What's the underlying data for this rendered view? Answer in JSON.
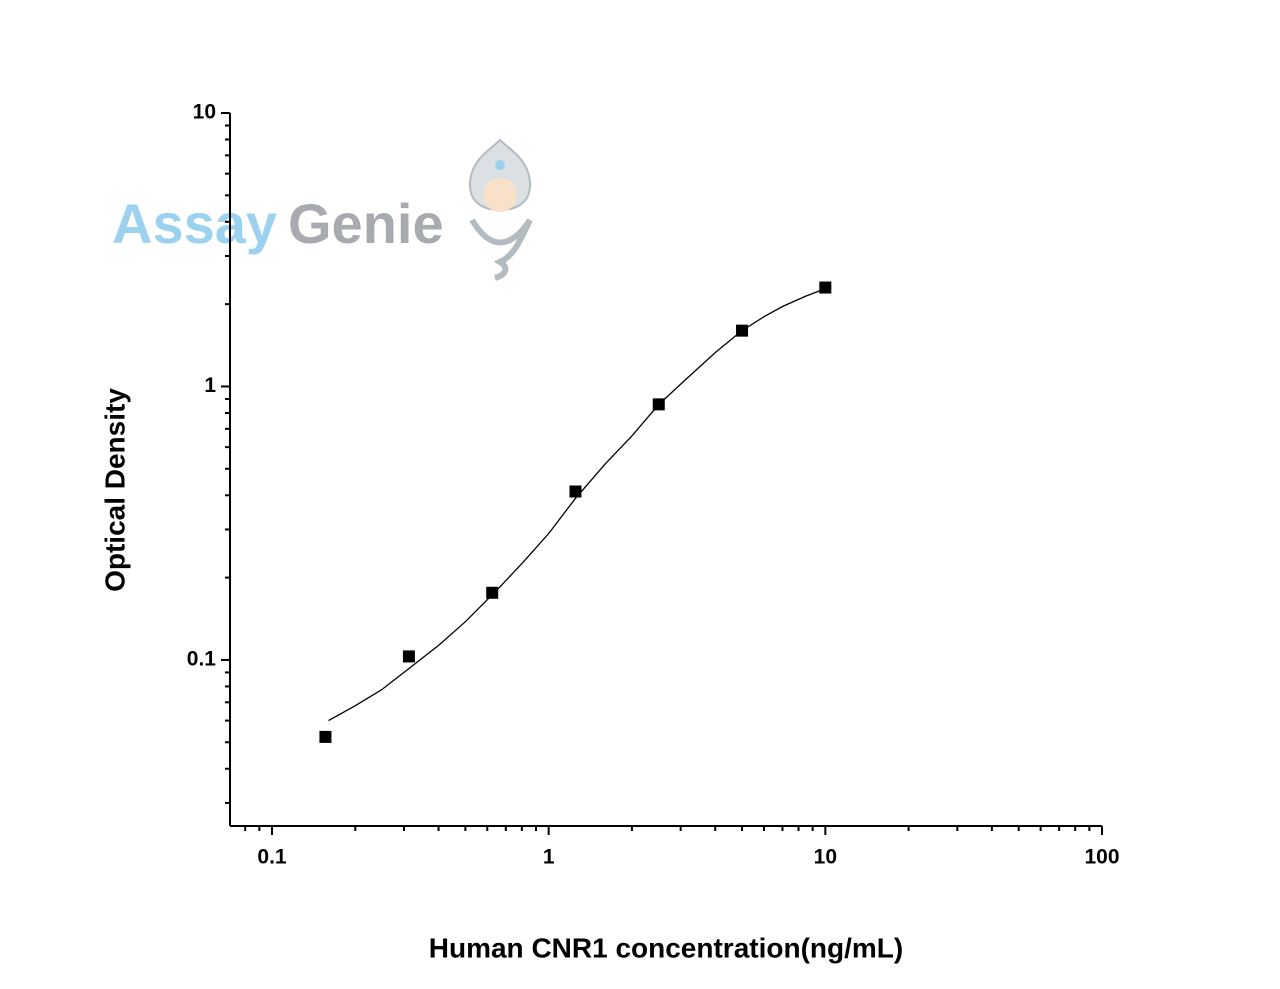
{
  "chart_data": {
    "type": "scatter",
    "xlabel": "Human CNR1 concentration(ng/mL)",
    "ylabel": "Optical Density",
    "x": [
      0.156,
      0.3125,
      0.625,
      1.25,
      2.5,
      5,
      10
    ],
    "values": [
      0.0523,
      0.103,
      0.176,
      0.413,
      0.86,
      1.6,
      2.3
    ],
    "color": "#000000",
    "fit": {
      "x": [
        0.16,
        0.2,
        0.25,
        0.3,
        0.4,
        0.5,
        0.65,
        0.8,
        1,
        1.25,
        1.6,
        2,
        2.5,
        3,
        4,
        5,
        6,
        7,
        8.5,
        10
      ],
      "values": [
        0.06,
        0.068,
        0.078,
        0.09,
        0.113,
        0.138,
        0.18,
        0.225,
        0.29,
        0.39,
        0.52,
        0.66,
        0.86,
        1.02,
        1.33,
        1.6,
        1.8,
        1.96,
        2.14,
        2.28
      ]
    },
    "xscale": "log",
    "yscale": "log",
    "xlim": [
      0.0705,
      100
    ],
    "ylim": [
      0.0247,
      10
    ],
    "xticks": [
      0.1,
      1,
      10,
      100
    ],
    "yticks": [
      0.1,
      1,
      10
    ],
    "xminorticks": [
      0.08,
      0.09,
      0.2,
      0.3,
      0.4,
      0.5,
      0.6,
      0.7,
      0.8,
      0.9,
      2,
      3,
      4,
      5,
      6,
      7,
      8,
      9,
      20,
      30,
      40,
      50,
      60,
      70,
      80,
      90
    ],
    "yminorticks": [
      0.03,
      0.04,
      0.05,
      0.06,
      0.07,
      0.08,
      0.09,
      0.2,
      0.3,
      0.4,
      0.5,
      0.6,
      0.7,
      0.8,
      0.9,
      2,
      3,
      4,
      5,
      6,
      7,
      8,
      9
    ],
    "watermark": {
      "part1": "Assay",
      "part2": "Genie"
    }
  }
}
